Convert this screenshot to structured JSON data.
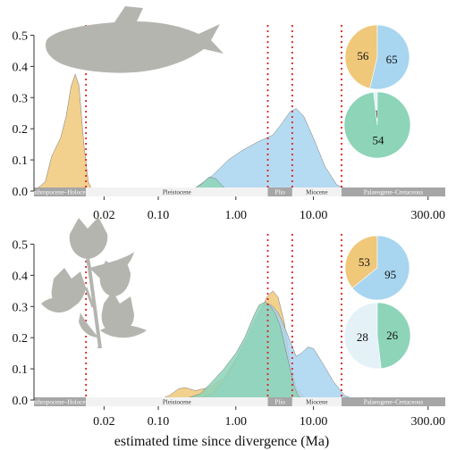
{
  "colors": {
    "orange": "#F0C87A",
    "blue": "#A8D5F0",
    "green": "#8DD4B8",
    "gray_overlap": "#A8B09C",
    "pale_blue": "#E4F2F8",
    "era_dark": "#A6A6A6",
    "era_light": "#F2F2F2",
    "vline": "#DD2222",
    "silhouette": "#B5B5B0"
  },
  "x_axis": {
    "label": "estimated time since divergence (Ma)",
    "scale": "log",
    "range": [
      0.0025,
      500
    ],
    "ticks": [
      "0.02",
      "0.10",
      "1.00",
      "10.00",
      "300.00"
    ],
    "tick_values": [
      0.02,
      0.1,
      1,
      10,
      300
    ]
  },
  "eras": [
    {
      "name": "Anthropocene–Holocene",
      "from": 0.0025,
      "to": 0.0117,
      "shade": "dark"
    },
    {
      "name": "Pleistocene",
      "from": 0.0117,
      "to": 2.58,
      "shade": "light"
    },
    {
      "name": "Plio",
      "from": 2.58,
      "to": 5.33,
      "shade": "dark"
    },
    {
      "name": "Miocene",
      "from": 5.33,
      "to": 23,
      "shade": "light"
    },
    {
      "name": "Palaeogene–Cretaceous",
      "from": 23,
      "to": 500,
      "shade": "dark"
    }
  ],
  "vlines": [
    0.0117,
    2.58,
    5.33,
    23
  ],
  "panels": [
    {
      "id": "fish",
      "icon": "fish-silhouette-icon",
      "y_ticks": [
        "0.0",
        "0.1",
        "0.2",
        "0.3",
        "0.4",
        "0.5"
      ],
      "y_tick_values": [
        0,
        0.1,
        0.2,
        0.3,
        0.4,
        0.5
      ],
      "ylim": [
        0,
        0.55
      ],
      "pies": [
        {
          "slices": [
            {
              "label": "56",
              "value": 56,
              "color": "orange"
            },
            {
              "label": "65",
              "value": 65,
              "color": "blue"
            }
          ]
        },
        {
          "slices": [
            {
              "label": "1",
              "value": 1,
              "color": "pale_blue"
            },
            {
              "label": "54",
              "value": 54,
              "color": "green"
            }
          ]
        }
      ]
    },
    {
      "id": "flower",
      "icon": "flower-silhouette-icon",
      "y_ticks": [
        "0.0",
        "0.1",
        "0.2",
        "0.3",
        "0.4",
        "0.5"
      ],
      "y_tick_values": [
        0,
        0.1,
        0.2,
        0.3,
        0.4,
        0.5
      ],
      "ylim": [
        0,
        0.55
      ],
      "pies": [
        {
          "slices": [
            {
              "label": "53",
              "value": 53,
              "color": "orange"
            },
            {
              "label": "95",
              "value": 95,
              "color": "blue"
            }
          ]
        },
        {
          "slices": [
            {
              "label": "28",
              "value": 28,
              "color": "pale_blue"
            },
            {
              "label": "26",
              "value": 26,
              "color": "green"
            }
          ]
        }
      ]
    }
  ],
  "chart_data": [
    {
      "type": "area",
      "xlabel": "",
      "ylabel": "",
      "x_scale": "log",
      "xlim": [
        0.0025,
        500
      ],
      "ylim": [
        0,
        0.55
      ],
      "series": [
        {
          "color": "orange",
          "x": [
            0.0025,
            0.0035,
            0.0042,
            0.0048,
            0.0055,
            0.0065,
            0.0075,
            0.0085,
            0.0095,
            0.011,
            0.0125,
            0.014,
            0.018
          ],
          "y": [
            0.0,
            0.03,
            0.11,
            0.14,
            0.17,
            0.24,
            0.335,
            0.375,
            0.34,
            0.15,
            0.03,
            0.005,
            0.0
          ]
        },
        {
          "color": "blue",
          "x": [
            0.15,
            0.3,
            0.5,
            0.8,
            1.2,
            2.0,
            3.0,
            4.0,
            5.0,
            6.0,
            7.5,
            10,
            14,
            20,
            30
          ],
          "y": [
            0.0,
            0.01,
            0.05,
            0.1,
            0.13,
            0.16,
            0.18,
            0.22,
            0.255,
            0.265,
            0.24,
            0.17,
            0.08,
            0.02,
            0.0
          ]
        },
        {
          "color": "green",
          "x": [
            0.25,
            0.35,
            0.45,
            0.55,
            0.65,
            0.75,
            0.85
          ],
          "y": [
            0.0,
            0.02,
            0.045,
            0.04,
            0.02,
            0.006,
            0.0
          ]
        }
      ]
    },
    {
      "type": "area",
      "xlabel": "estimated time since divergence (Ma)",
      "ylabel": "",
      "x_scale": "log",
      "xlim": [
        0.0025,
        500
      ],
      "ylim": [
        0,
        0.55
      ],
      "series": [
        {
          "color": "orange",
          "x": [
            0.1,
            0.14,
            0.18,
            0.22,
            0.3,
            0.45,
            0.7,
            1.0,
            1.5,
            2.0,
            2.5,
            3.0,
            3.5,
            4.2,
            5.0,
            6.0,
            7.5,
            10
          ],
          "y": [
            0.0,
            0.015,
            0.035,
            0.04,
            0.03,
            0.04,
            0.07,
            0.13,
            0.2,
            0.27,
            0.33,
            0.35,
            0.33,
            0.25,
            0.12,
            0.04,
            0.01,
            0.0
          ]
        },
        {
          "color": "blue",
          "x": [
            0.3,
            0.5,
            0.8,
            1.0,
            1.4,
            1.8,
            2.2,
            2.6,
            3.0,
            3.5,
            4.0,
            5.0,
            6.0,
            7.0,
            8.5,
            10,
            13,
            18,
            25,
            35
          ],
          "y": [
            0.0,
            0.02,
            0.08,
            0.13,
            0.2,
            0.26,
            0.3,
            0.31,
            0.3,
            0.28,
            0.25,
            0.19,
            0.14,
            0.15,
            0.17,
            0.165,
            0.12,
            0.06,
            0.015,
            0.0
          ]
        },
        {
          "color": "green",
          "x": [
            0.2,
            0.35,
            0.5,
            0.7,
            1.0,
            1.3,
            1.7,
            2.0,
            2.4,
            2.8,
            3.2,
            3.7,
            4.3,
            5.0,
            5.7,
            6.3,
            7.0,
            8.0
          ],
          "y": [
            0.0,
            0.02,
            0.06,
            0.1,
            0.15,
            0.2,
            0.27,
            0.305,
            0.315,
            0.3,
            0.28,
            0.24,
            0.17,
            0.1,
            0.04,
            0.015,
            0.003,
            0.0
          ]
        }
      ]
    }
  ]
}
